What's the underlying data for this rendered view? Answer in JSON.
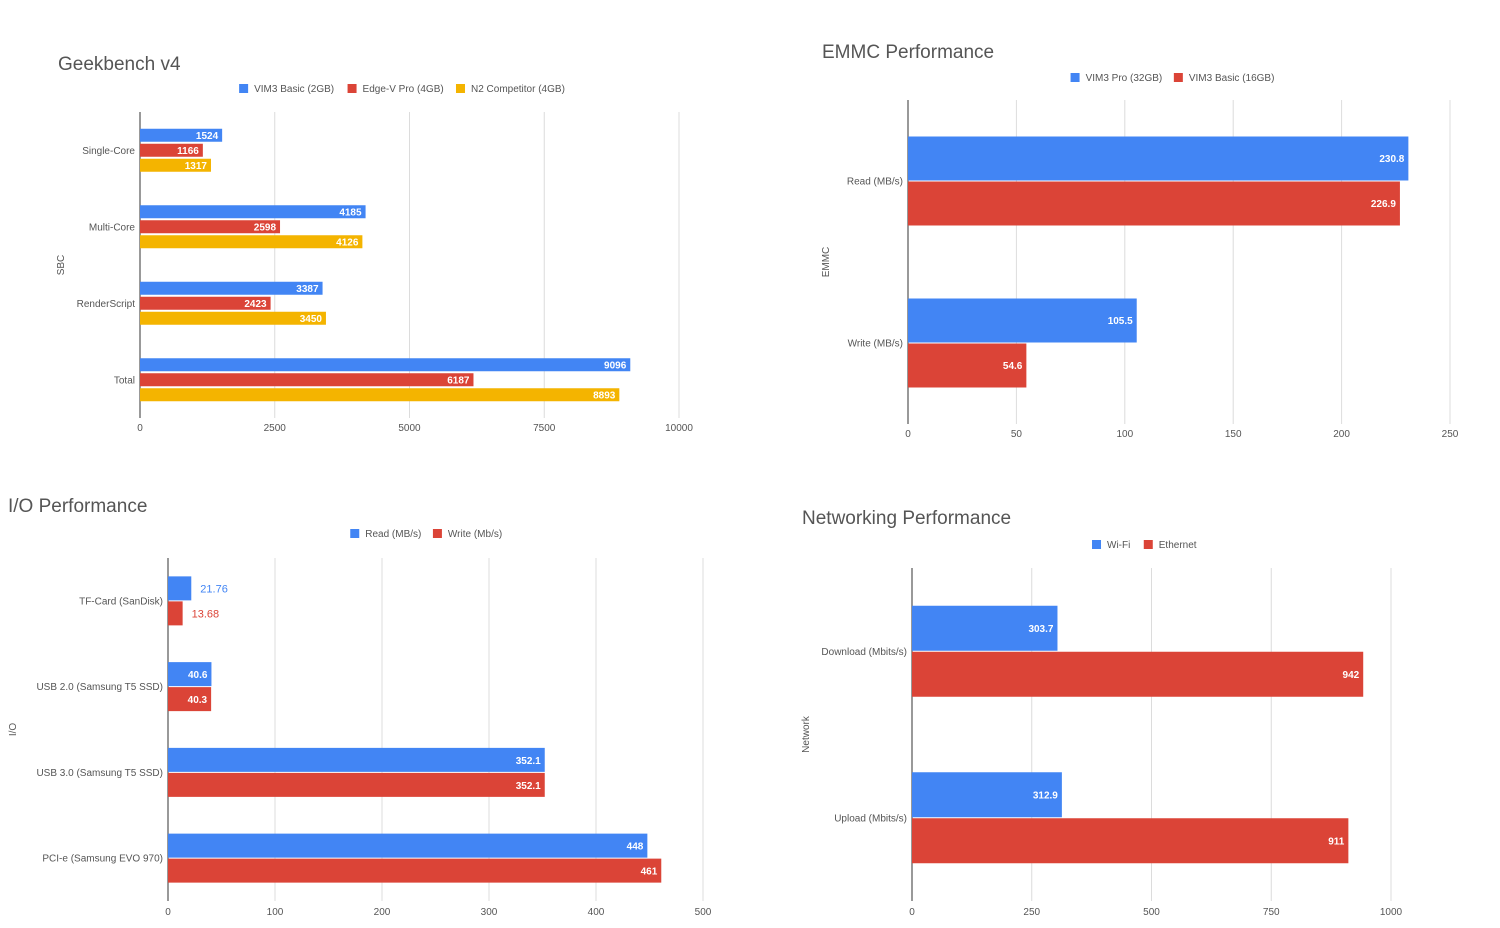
{
  "colors": {
    "blue": "#4285F4",
    "red": "#DB4437",
    "yellow": "#F4B400"
  },
  "chart_data": [
    {
      "id": "geekbench",
      "type": "bar",
      "orientation": "horizontal",
      "title": "Geekbench v4",
      "ylabel": "SBC",
      "xlabel": "",
      "categories": [
        "Single-Core",
        "Multi-Core",
        "RenderScript",
        "Total"
      ],
      "series": [
        {
          "name": "VIM3 Basic (2GB)",
          "color": "#4285F4",
          "values": [
            1524,
            4185,
            3387,
            9096
          ]
        },
        {
          "name": "Edge-V Pro (4GB)",
          "color": "#DB4437",
          "values": [
            1166,
            2598,
            2423,
            6187
          ]
        },
        {
          "name": "N2 Competitor (4GB)",
          "color": "#F4B400",
          "values": [
            1317,
            4126,
            3450,
            8893
          ]
        }
      ],
      "xlim": [
        0,
        10000
      ],
      "ticks": [
        0,
        2500,
        5000,
        7500,
        10000
      ],
      "grid": true,
      "legend": "top"
    },
    {
      "id": "emmc",
      "type": "bar",
      "orientation": "horizontal",
      "title": "EMMC Performance",
      "ylabel": "EMMC",
      "xlabel": "",
      "categories": [
        "Read (MB/s)",
        "Write (MB/s)"
      ],
      "series": [
        {
          "name": "VIM3 Pro (32GB)",
          "color": "#4285F4",
          "values": [
            230.8,
            105.5
          ]
        },
        {
          "name": "VIM3 Basic (16GB)",
          "color": "#DB4437",
          "values": [
            226.9,
            54.6
          ]
        }
      ],
      "xlim": [
        0,
        250
      ],
      "ticks": [
        0,
        50,
        100,
        150,
        200,
        250
      ],
      "grid": true,
      "legend": "top"
    },
    {
      "id": "io",
      "type": "bar",
      "orientation": "horizontal",
      "title": "I/O Performance",
      "ylabel": "I/O",
      "xlabel": "",
      "categories": [
        "TF-Card (SanDisk)",
        "USB 2.0 (Samsung T5 SSD)",
        "USB 3.0 (Samsung T5 SSD)",
        "PCI-e (Samsung EVO 970)"
      ],
      "series": [
        {
          "name": "Read (MB/s)",
          "color": "#4285F4",
          "values": [
            21.76,
            40.6,
            352.1,
            448
          ]
        },
        {
          "name": "Write (Mb/s)",
          "color": "#DB4437",
          "values": [
            13.68,
            40.3,
            352.1,
            461
          ]
        }
      ],
      "xlim": [
        0,
        500
      ],
      "ticks": [
        0,
        100,
        200,
        300,
        400,
        500
      ],
      "grid": true,
      "legend": "top"
    },
    {
      "id": "network",
      "type": "bar",
      "orientation": "horizontal",
      "title": "Networking Performance",
      "ylabel": "Network",
      "xlabel": "",
      "categories": [
        "Download (Mbits/s)",
        "Upload (Mbits/s)"
      ],
      "series": [
        {
          "name": "Wi-Fi",
          "color": "#4285F4",
          "values": [
            303.7,
            312.9
          ]
        },
        {
          "name": "Ethernet",
          "color": "#DB4437",
          "values": [
            942,
            911
          ]
        }
      ],
      "xlim": [
        0,
        1000
      ],
      "ticks": [
        0,
        250,
        500,
        750,
        1000
      ],
      "grid": true,
      "legend": "top"
    }
  ]
}
